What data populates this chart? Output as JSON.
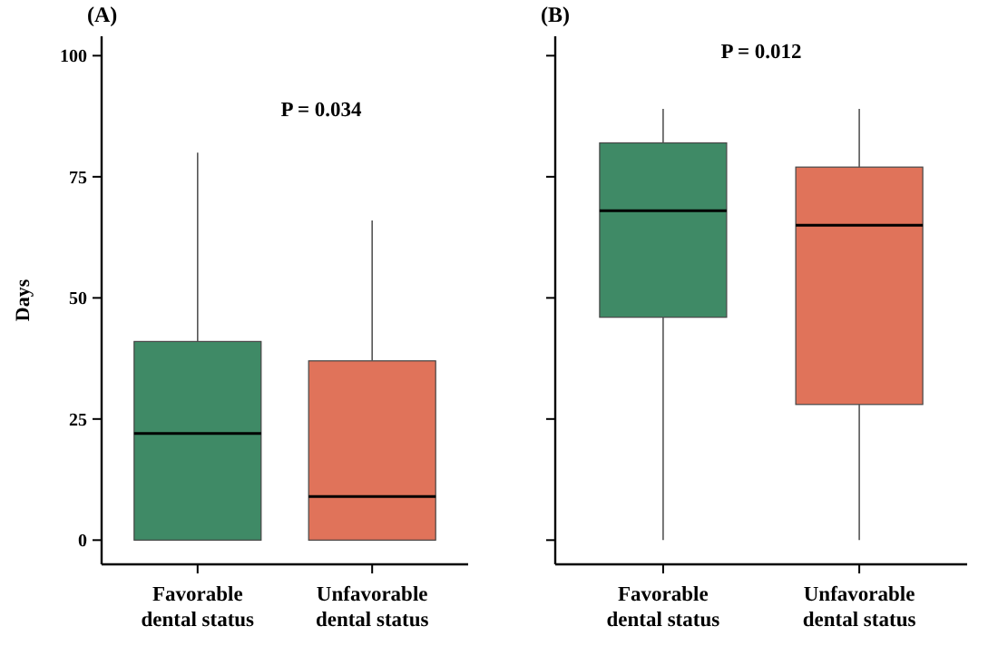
{
  "chart_data": [
    {
      "type": "box",
      "title": "(A)",
      "ylabel": "Days",
      "categories": [
        "Favorable\ndental status",
        "Unfavorable\ndental status"
      ],
      "colors": [
        "#3f8a66",
        "#e0735a"
      ],
      "ylim": [
        -5,
        104
      ],
      "yticks": [
        0,
        25,
        50,
        75,
        100
      ],
      "annotations": [
        "P = 0.034"
      ],
      "boxes": [
        {
          "low": 0,
          "q1": 0,
          "median": 22,
          "q3": 41,
          "high": 80
        },
        {
          "low": 0,
          "q1": 0,
          "median": 9,
          "q3": 37,
          "high": 66
        }
      ]
    },
    {
      "type": "box",
      "title": "(B)",
      "categories": [
        "Favorable\ndental status",
        "Unfavorable\ndental status"
      ],
      "colors": [
        "#3f8a66",
        "#e0735a"
      ],
      "ylim": [
        -5,
        104
      ],
      "yticks": [
        {
          "value": 0,
          "label": null
        },
        {
          "value": 25,
          "label": null
        },
        {
          "value": 50,
          "label": null
        },
        {
          "value": 75,
          "label": null
        },
        {
          "value": 100,
          "label": null
        }
      ],
      "tick_labels": "x",
      "annotations": [
        "P = 0.012"
      ],
      "boxes": [
        {
          "low": 0,
          "q1": 46,
          "median": 68,
          "q3": 82,
          "high": 89
        },
        {
          "low": 0,
          "q1": 28,
          "median": 65,
          "q3": 77,
          "high": 89
        }
      ]
    }
  ]
}
